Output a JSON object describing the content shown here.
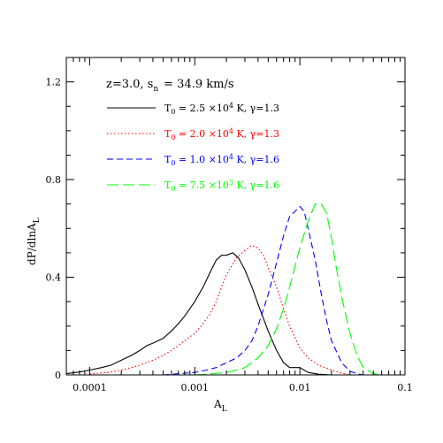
{
  "chart_data": {
    "type": "line",
    "header": {
      "text": "z=3.0, s",
      "sub": "n",
      "value": "= 34.9 km/s"
    },
    "xlabel": {
      "main": "A",
      "sub": "L"
    },
    "ylabel": {
      "main": "dP/dlnA",
      "sub": "L"
    },
    "x_scale": "log",
    "xlim": [
      6e-05,
      0.1
    ],
    "ylim": [
      0,
      1.3
    ],
    "x_ticks": [
      {
        "value": 0.0001,
        "label": "0.0001"
      },
      {
        "value": 0.001,
        "label": "0.001"
      },
      {
        "value": 0.01,
        "label": "0.01"
      },
      {
        "value": 0.1,
        "label": "0.1"
      }
    ],
    "y_ticks": [
      {
        "value": 0,
        "label": "0"
      },
      {
        "value": 0.4,
        "label": "0.4"
      },
      {
        "value": 0.8,
        "label": "0.8"
      },
      {
        "value": 1.2,
        "label": "1.2"
      }
    ],
    "series": [
      {
        "name": "T0 = 2.5 ×10⁴ K, γ=1.3",
        "legend": {
          "T": "T",
          "sub": "0",
          "text": " = 2.5 ×10",
          "exp": "4",
          "rest": " K, γ=1.3"
        },
        "color": "#000000",
        "dash": "",
        "x": [
          6e-05,
          8e-05,
          0.0001,
          0.00013,
          0.00016,
          0.0002,
          0.00025,
          0.0003,
          0.00035,
          0.0004,
          0.0005,
          0.0006,
          0.0007,
          0.0008,
          0.001,
          0.0012,
          0.0014,
          0.0016,
          0.0018,
          0.002,
          0.0023,
          0.0026,
          0.003,
          0.0035,
          0.004,
          0.005,
          0.006,
          0.007,
          0.008,
          0.01,
          0.012,
          0.015,
          0.02
        ],
        "y": [
          0.005,
          0.012,
          0.02,
          0.03,
          0.04,
          0.06,
          0.08,
          0.1,
          0.12,
          0.13,
          0.15,
          0.18,
          0.21,
          0.24,
          0.3,
          0.36,
          0.42,
          0.47,
          0.49,
          0.49,
          0.5,
          0.48,
          0.43,
          0.36,
          0.29,
          0.18,
          0.1,
          0.05,
          0.03,
          0.03,
          0.01,
          0.003,
          0.0
        ]
      },
      {
        "name": "T0 = 2.0 ×10⁴ K, γ=1.3",
        "legend": {
          "T": "T",
          "sub": "0",
          "text": " = 2.0 ×10",
          "exp": "4",
          "rest": " K, γ=1.3"
        },
        "color": "#ff0000",
        "dash": "1.5,2.5",
        "x": [
          0.0001,
          0.00015,
          0.0002,
          0.00025,
          0.0003,
          0.0004,
          0.0005,
          0.0006,
          0.0007,
          0.0008,
          0.001,
          0.0012,
          0.0014,
          0.0016,
          0.0018,
          0.002,
          0.0025,
          0.003,
          0.0035,
          0.004,
          0.0045,
          0.005,
          0.006,
          0.007,
          0.008,
          0.01,
          0.012,
          0.015,
          0.02,
          0.025,
          0.03
        ],
        "y": [
          0.004,
          0.01,
          0.02,
          0.03,
          0.04,
          0.06,
          0.08,
          0.1,
          0.12,
          0.14,
          0.17,
          0.21,
          0.25,
          0.3,
          0.36,
          0.41,
          0.48,
          0.51,
          0.53,
          0.52,
          0.49,
          0.44,
          0.36,
          0.27,
          0.2,
          0.11,
          0.07,
          0.04,
          0.02,
          0.007,
          0.0
        ]
      },
      {
        "name": "T0 = 1.0 ×10⁴ K, γ=1.6",
        "legend": {
          "T": "T",
          "sub": "0",
          "text": " = 1.0 ×10",
          "exp": "4",
          "rest": " K, γ=1.6"
        },
        "color": "#0000ff",
        "dash": "7,4",
        "x": [
          0.0005,
          0.0007,
          0.001,
          0.0013,
          0.0016,
          0.002,
          0.0025,
          0.003,
          0.0035,
          0.004,
          0.005,
          0.006,
          0.007,
          0.008,
          0.009,
          0.01,
          0.011,
          0.012,
          0.014,
          0.016,
          0.018,
          0.02,
          0.025,
          0.03,
          0.035,
          0.04
        ],
        "y": [
          0.0,
          0.005,
          0.01,
          0.02,
          0.03,
          0.05,
          0.07,
          0.1,
          0.14,
          0.2,
          0.33,
          0.46,
          0.57,
          0.65,
          0.67,
          0.69,
          0.67,
          0.6,
          0.47,
          0.33,
          0.22,
          0.14,
          0.05,
          0.015,
          0.005,
          0.0
        ]
      },
      {
        "name": "T0 = 7.5 ×10³ K, γ=1.6",
        "legend": {
          "T": "T",
          "sub": "0",
          "text": " = 7.5 ×10",
          "exp": "3",
          "rest": " K, γ=1.6"
        },
        "color": "#00ff00",
        "dash": "13,5",
        "x": [
          0.001,
          0.0015,
          0.002,
          0.0025,
          0.003,
          0.004,
          0.005,
          0.006,
          0.007,
          0.008,
          0.01,
          0.012,
          0.014,
          0.016,
          0.018,
          0.02,
          0.022,
          0.025,
          0.03,
          0.035,
          0.04,
          0.05,
          0.06
        ],
        "y": [
          0.0,
          0.005,
          0.01,
          0.02,
          0.03,
          0.07,
          0.12,
          0.19,
          0.27,
          0.36,
          0.52,
          0.63,
          0.7,
          0.7,
          0.66,
          0.56,
          0.45,
          0.32,
          0.17,
          0.08,
          0.03,
          0.005,
          0.0
        ]
      }
    ]
  }
}
